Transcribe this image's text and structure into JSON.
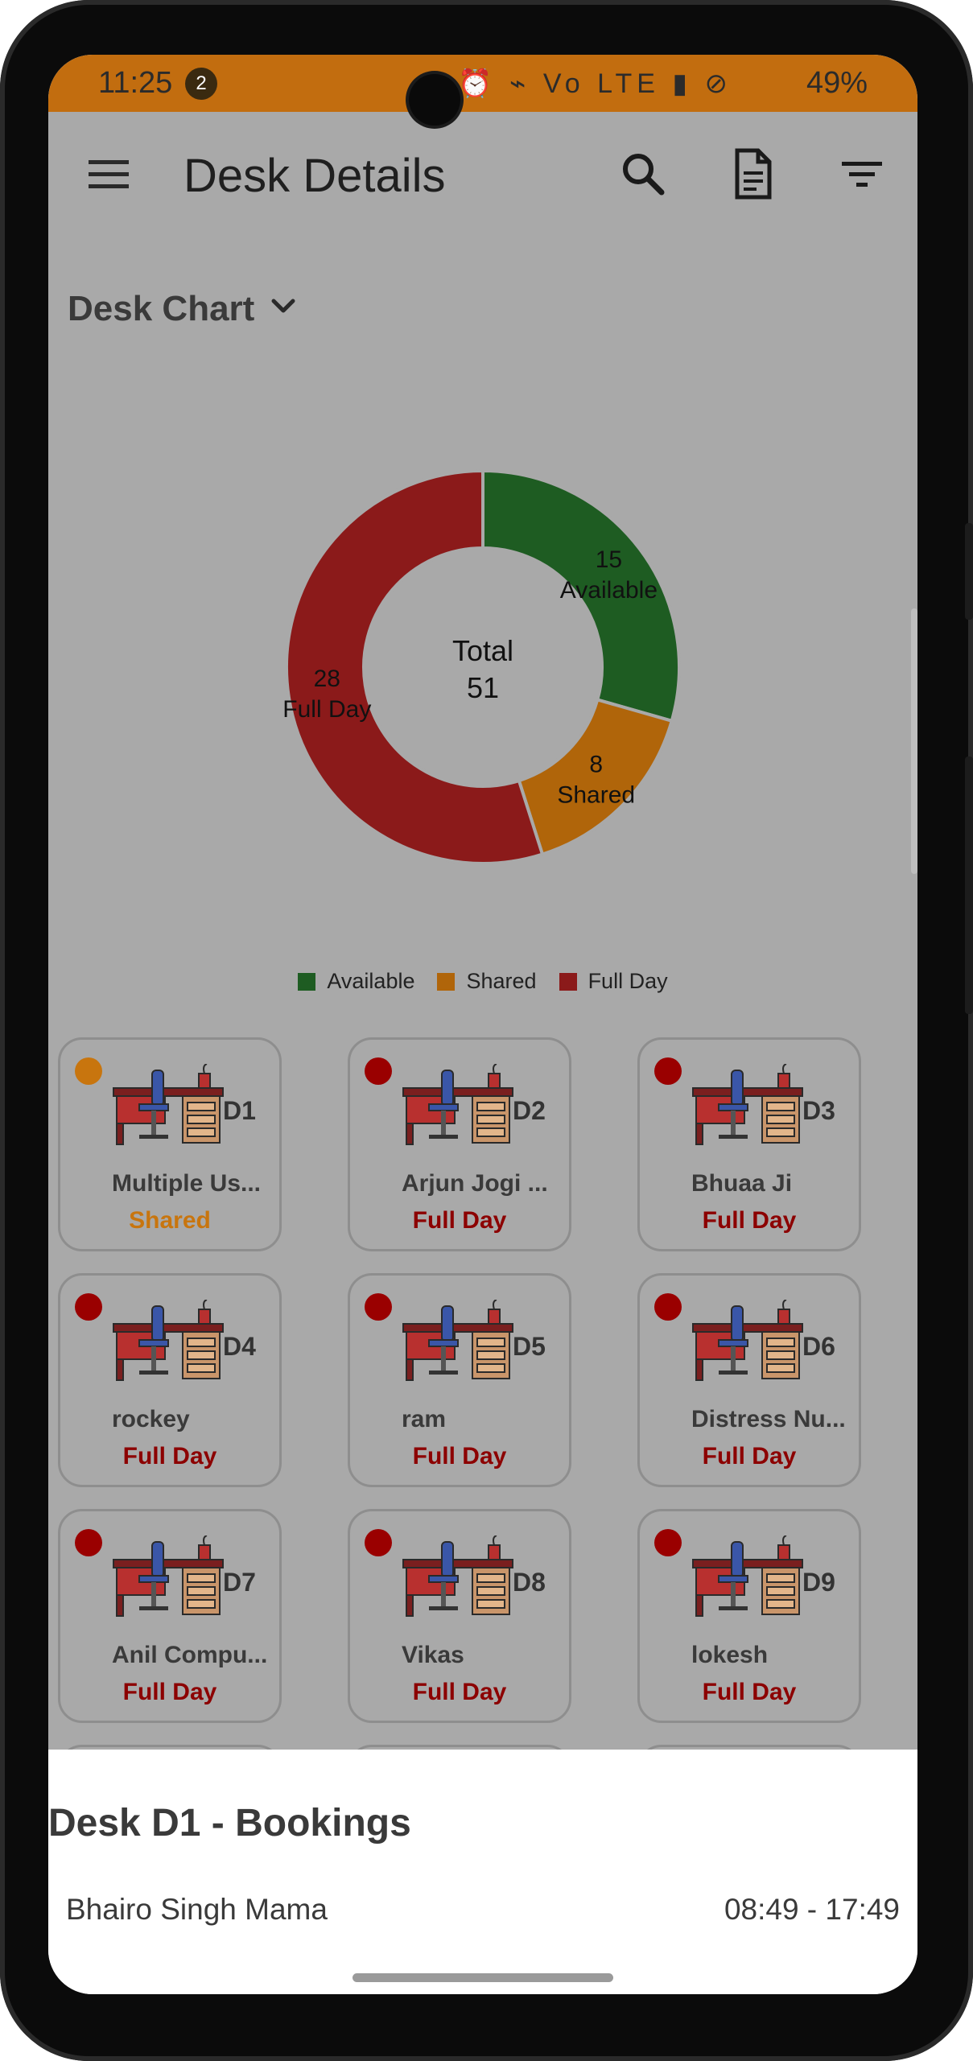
{
  "status_bar": {
    "time": "11:25",
    "notification_count": "2",
    "icons": "⏰ ⌁ Vo LTE ▮ ⊘",
    "battery": "49%"
  },
  "app_bar": {
    "title": "Desk Details",
    "menu_icon": "menu-icon",
    "search_icon": "search-icon",
    "report_icon": "document-icon",
    "filter_icon": "filter-icon"
  },
  "chart_section": {
    "dropdown_label": "Desk Chart"
  },
  "chart_data": {
    "type": "pie",
    "title": "",
    "center_label": "Total",
    "center_value": "51",
    "slices": [
      {
        "name": "Available",
        "value": 15,
        "color": "#1e5c22",
        "label_value": "15",
        "label_name": "Available"
      },
      {
        "name": "Shared",
        "value": 8,
        "color": "#b0650a",
        "label_value": "8",
        "label_name": "Shared"
      },
      {
        "name": "Full Day",
        "value": 28,
        "color": "#8b1a1a",
        "label_value": "28",
        "label_name": "Full Day"
      }
    ],
    "legend": [
      "Available",
      "Shared",
      "Full Day"
    ],
    "legend_placement": "bottom"
  },
  "colors": {
    "shared": "#c8750e",
    "full_day": "#8c0000",
    "dot_shared": "#c8750e",
    "dot_full": "#9a0000"
  },
  "desks": [
    {
      "code": "D1",
      "user": "Multiple Us...",
      "status": "Shared",
      "type": "shared"
    },
    {
      "code": "D2",
      "user": "Arjun Jogi ...",
      "status": "Full Day",
      "type": "full"
    },
    {
      "code": "D3",
      "user": "Bhuaa Ji",
      "status": "Full Day",
      "type": "full"
    },
    {
      "code": "D4",
      "user": "rockey",
      "status": "Full Day",
      "type": "full"
    },
    {
      "code": "D5",
      "user": "ram",
      "status": "Full Day",
      "type": "full"
    },
    {
      "code": "D6",
      "user": "Distress Nu...",
      "status": "Full Day",
      "type": "full"
    },
    {
      "code": "D7",
      "user": "Anil Compu...",
      "status": "Full Day",
      "type": "full"
    },
    {
      "code": "D8",
      "user": "Vikas",
      "status": "Full Day",
      "type": "full"
    },
    {
      "code": "D9",
      "user": "lokesh",
      "status": "Full Day",
      "type": "full"
    },
    {
      "code": "",
      "user": "",
      "status": "",
      "type": "full"
    },
    {
      "code": "",
      "user": "",
      "status": "",
      "type": "full"
    },
    {
      "code": "",
      "user": "",
      "status": "",
      "type": "shared"
    }
  ],
  "bottom_sheet": {
    "title": "Desk D1 - Bookings",
    "bookings": [
      {
        "name": "Bhairo Singh Mama",
        "time": "08:49 - 17:49"
      }
    ]
  }
}
